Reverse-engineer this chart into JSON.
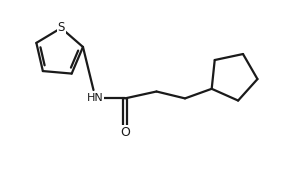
{
  "background": "#ffffff",
  "line_color": "#1a1a1a",
  "line_width": 1.6,
  "label_HN": "HN",
  "label_O": "O",
  "label_S": "S",
  "xlim": [
    0,
    10
  ],
  "ylim": [
    0,
    6
  ]
}
